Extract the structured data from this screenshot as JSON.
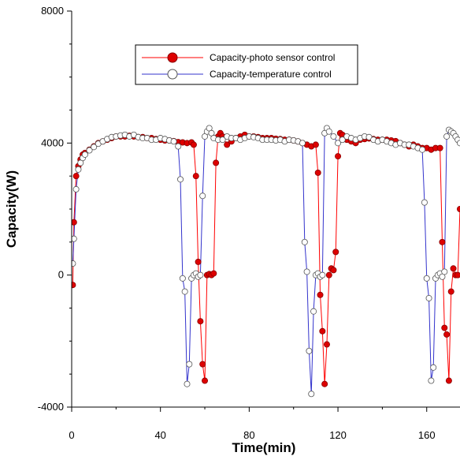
{
  "chart_data": {
    "type": "line",
    "title": "",
    "xlabel": "Time(min)",
    "ylabel": "Capacity(W)",
    "xlim": [
      0,
      175
    ],
    "ylim": [
      -4000,
      8000
    ],
    "x_ticks": [
      0,
      40,
      80,
      120,
      160
    ],
    "x_tick_labels": [
      "0",
      "40",
      "80",
      "120",
      "160"
    ],
    "y_ticks": [
      -4000,
      0,
      4000,
      8000
    ],
    "y_tick_labels": [
      "-4000",
      "0",
      "4000",
      "8000"
    ],
    "grid": false,
    "legend_position": "top-center",
    "series": [
      {
        "name": "Capacity-photo sensor control",
        "color": "#ff0000",
        "marker_fill": "#dd0000",
        "marker_stroke": "#880000",
        "points": [
          [
            0.5,
            -300
          ],
          [
            1,
            1600
          ],
          [
            2,
            3000
          ],
          [
            3,
            3300
          ],
          [
            4,
            3500
          ],
          [
            5,
            3650
          ],
          [
            6,
            3700
          ],
          [
            8,
            3800
          ],
          [
            10,
            3900
          ],
          [
            12,
            4000
          ],
          [
            14,
            4050
          ],
          [
            16,
            4100
          ],
          [
            18,
            4150
          ],
          [
            20,
            4200
          ],
          [
            22,
            4200
          ],
          [
            24,
            4200
          ],
          [
            26,
            4220
          ],
          [
            28,
            4200
          ],
          [
            30,
            4180
          ],
          [
            32,
            4180
          ],
          [
            34,
            4150
          ],
          [
            36,
            4150
          ],
          [
            38,
            4120
          ],
          [
            40,
            4100
          ],
          [
            42,
            4080
          ],
          [
            44,
            4080
          ],
          [
            46,
            4060
          ],
          [
            48,
            4030
          ],
          [
            50,
            4020
          ],
          [
            52,
            4000
          ],
          [
            54,
            4020
          ],
          [
            55,
            3950
          ],
          [
            56,
            3000
          ],
          [
            57,
            400
          ],
          [
            58,
            -1400
          ],
          [
            59,
            -2700
          ],
          [
            60,
            -3200
          ],
          [
            61,
            0
          ],
          [
            62,
            30
          ],
          [
            63,
            0
          ],
          [
            64,
            50
          ],
          [
            65,
            3400
          ],
          [
            66,
            4200
          ],
          [
            67,
            4300
          ],
          [
            68,
            4200
          ],
          [
            70,
            3950
          ],
          [
            72,
            4050
          ],
          [
            74,
            4150
          ],
          [
            76,
            4200
          ],
          [
            78,
            4250
          ],
          [
            80,
            4200
          ],
          [
            82,
            4200
          ],
          [
            84,
            4180
          ],
          [
            86,
            4150
          ],
          [
            88,
            4150
          ],
          [
            90,
            4150
          ],
          [
            92,
            4130
          ],
          [
            94,
            4120
          ],
          [
            96,
            4100
          ],
          [
            98,
            4100
          ],
          [
            100,
            4080
          ],
          [
            102,
            4050
          ],
          [
            104,
            4000
          ],
          [
            106,
            3950
          ],
          [
            108,
            3900
          ],
          [
            110,
            3950
          ],
          [
            111,
            3100
          ],
          [
            112,
            -600
          ],
          [
            113,
            -1700
          ],
          [
            114,
            -3300
          ],
          [
            115,
            -2100
          ],
          [
            116,
            0
          ],
          [
            117,
            200
          ],
          [
            118,
            150
          ],
          [
            119,
            700
          ],
          [
            120,
            3600
          ],
          [
            121,
            4300
          ],
          [
            122,
            4250
          ],
          [
            124,
            4100
          ],
          [
            126,
            4050
          ],
          [
            128,
            4000
          ],
          [
            130,
            4100
          ],
          [
            132,
            4120
          ],
          [
            134,
            4140
          ],
          [
            136,
            4120
          ],
          [
            138,
            4100
          ],
          [
            140,
            4100
          ],
          [
            142,
            4100
          ],
          [
            144,
            4080
          ],
          [
            146,
            4060
          ],
          [
            148,
            4000
          ],
          [
            150,
            3950
          ],
          [
            152,
            3900
          ],
          [
            154,
            3950
          ],
          [
            156,
            3900
          ],
          [
            158,
            3850
          ],
          [
            160,
            3850
          ],
          [
            162,
            3800
          ],
          [
            164,
            3850
          ],
          [
            166,
            3850
          ],
          [
            167,
            1000
          ],
          [
            168,
            -1600
          ],
          [
            169,
            -1800
          ],
          [
            170,
            -3200
          ],
          [
            171,
            -500
          ],
          [
            172,
            200
          ],
          [
            173,
            0
          ],
          [
            174,
            0
          ],
          [
            175,
            2000
          ]
        ]
      },
      {
        "name": "Capacity-temperature control",
        "color": "#3333cc",
        "marker_fill": "#ffffff",
        "marker_stroke": "#555555",
        "points": [
          [
            0.5,
            350
          ],
          [
            1,
            1100
          ],
          [
            2,
            2600
          ],
          [
            3,
            3200
          ],
          [
            4,
            3400
          ],
          [
            5,
            3550
          ],
          [
            6,
            3650
          ],
          [
            8,
            3780
          ],
          [
            10,
            3880
          ],
          [
            12,
            3980
          ],
          [
            14,
            4050
          ],
          [
            16,
            4120
          ],
          [
            18,
            4180
          ],
          [
            20,
            4200
          ],
          [
            22,
            4230
          ],
          [
            24,
            4250
          ],
          [
            26,
            4200
          ],
          [
            28,
            4250
          ],
          [
            30,
            4180
          ],
          [
            32,
            4150
          ],
          [
            34,
            4150
          ],
          [
            36,
            4100
          ],
          [
            38,
            4100
          ],
          [
            40,
            4150
          ],
          [
            42,
            4120
          ],
          [
            44,
            4080
          ],
          [
            46,
            4050
          ],
          [
            48,
            3900
          ],
          [
            49,
            2900
          ],
          [
            50,
            -100
          ],
          [
            51,
            -500
          ],
          [
            52,
            -3300
          ],
          [
            53,
            -2700
          ],
          [
            54,
            -100
          ],
          [
            55,
            0
          ],
          [
            56,
            50
          ],
          [
            57,
            -50
          ],
          [
            58,
            0
          ],
          [
            59,
            2400
          ],
          [
            60,
            4200
          ],
          [
            61,
            4350
          ],
          [
            62,
            4450
          ],
          [
            63,
            4300
          ],
          [
            64,
            4150
          ],
          [
            66,
            4100
          ],
          [
            68,
            4100
          ],
          [
            70,
            4200
          ],
          [
            72,
            4150
          ],
          [
            74,
            4150
          ],
          [
            76,
            4100
          ],
          [
            78,
            4150
          ],
          [
            80,
            4200
          ],
          [
            82,
            4180
          ],
          [
            84,
            4150
          ],
          [
            86,
            4100
          ],
          [
            88,
            4100
          ],
          [
            90,
            4100
          ],
          [
            92,
            4080
          ],
          [
            94,
            4100
          ],
          [
            96,
            4050
          ],
          [
            98,
            4100
          ],
          [
            100,
            4080
          ],
          [
            102,
            4050
          ],
          [
            104,
            4000
          ],
          [
            105,
            1000
          ],
          [
            106,
            100
          ],
          [
            107,
            -2300
          ],
          [
            108,
            -3600
          ],
          [
            109,
            -1100
          ],
          [
            110,
            0
          ],
          [
            111,
            50
          ],
          [
            112,
            -50
          ],
          [
            113,
            0
          ],
          [
            114,
            4300
          ],
          [
            115,
            4450
          ],
          [
            116,
            4350
          ],
          [
            118,
            4200
          ],
          [
            120,
            4000
          ],
          [
            122,
            4100
          ],
          [
            124,
            4200
          ],
          [
            126,
            4150
          ],
          [
            128,
            4100
          ],
          [
            130,
            4150
          ],
          [
            132,
            4200
          ],
          [
            134,
            4180
          ],
          [
            136,
            4100
          ],
          [
            138,
            4050
          ],
          [
            140,
            4100
          ],
          [
            142,
            4050
          ],
          [
            144,
            4000
          ],
          [
            146,
            3950
          ],
          [
            148,
            4000
          ],
          [
            150,
            3950
          ],
          [
            152,
            3950
          ],
          [
            154,
            3900
          ],
          [
            156,
            3850
          ],
          [
            158,
            3800
          ],
          [
            159,
            2200
          ],
          [
            160,
            -100
          ],
          [
            161,
            -700
          ],
          [
            162,
            -3200
          ],
          [
            163,
            -2800
          ],
          [
            164,
            -100
          ],
          [
            165,
            0
          ],
          [
            166,
            50
          ],
          [
            167,
            -50
          ],
          [
            168,
            100
          ],
          [
            169,
            4200
          ],
          [
            170,
            4400
          ],
          [
            171,
            4350
          ],
          [
            172,
            4300
          ],
          [
            173,
            4200
          ],
          [
            174,
            4100
          ],
          [
            175,
            4000
          ]
        ]
      }
    ]
  }
}
